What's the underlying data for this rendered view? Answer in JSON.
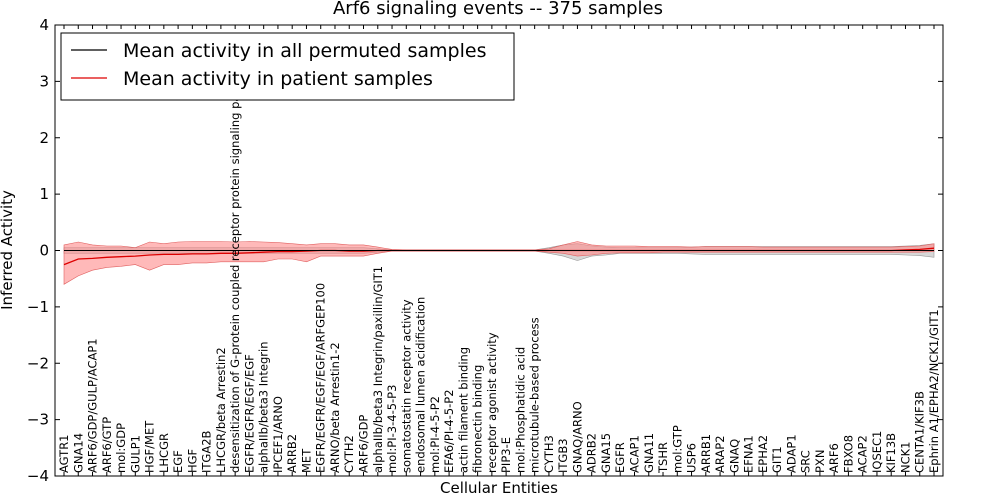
{
  "chart_data": {
    "type": "line",
    "title": "Arf6 signaling events -- 375 samples",
    "xlabel": "Cellular Entities",
    "ylabel": "Inferred Activity",
    "ylim": [
      -4,
      4
    ],
    "yticks": [
      -4,
      -3,
      -2,
      -1,
      0,
      1,
      2,
      3,
      4
    ],
    "ytick_labels": [
      "−4",
      "−3",
      "−2",
      "−1",
      "0",
      "1",
      "2",
      "3",
      "4"
    ],
    "legend_position": "top-left",
    "colors": {
      "permuted": "#000000",
      "patient": "#dd0000",
      "patient_band": "#ff8a8a",
      "permuted_band": "#b0b0b0"
    },
    "categories": [
      "AGTR1",
      "GNA14",
      "ARF6/GDP/GULP/ACAP1",
      "ARF6/GTP",
      "mol:GDP",
      "GULP1",
      "HGF/MET",
      "LHCGR",
      "EGF",
      "HGF",
      "ITGA2B",
      "LHCGR/beta Arrestin2",
      "desensitization of G-protein coupled receptor protein signaling pathway",
      "EGFR/EGFR/EGF/EGF",
      "alphaIIb/beta3 Integrin",
      "IPCEF1/ARNO",
      "ARRB2",
      "MET",
      "EGFR/EGFR/EGF/EGF/ARFGEP100",
      "ARNO/beta Arrestin1-2",
      "CYTH2",
      "ARF6/GDP",
      "alphaIIb/beta3 Integrin/paxillin/GIT1",
      "mol:PI-3-4-5-P3",
      "somatostatin receptor activity",
      "endosomal lumen acidification",
      "mol:PI-4-5-P2",
      "EFA6/PI-4-5-P2",
      "actin filament binding",
      "fibronectin binding",
      "receptor agonist activity",
      "PIP3-E",
      "mol:Phosphatidic acid",
      "microtubule-based process",
      "CYTH3",
      "ITGB3",
      "GNAQ/ARNO",
      "ADRB2",
      "GNA15",
      "EGFR",
      "ACAP1",
      "GNA11",
      "TSHR",
      "mol:GTP",
      "USP6",
      "ARRB1",
      "ARAP2",
      "GNAQ",
      "EFNA1",
      "EPHA2",
      "GIT1",
      "ADAP1",
      "SRC",
      "PXN",
      "ARF6",
      "FBXO8",
      "ACAP2",
      "IQSEC1",
      "KIF13B",
      "NCK1",
      "CENTA1/KIF3B",
      "Ephrin A1/EPHA2/NCK1/GIT1"
    ],
    "series": [
      {
        "name": "Mean activity in all permuted samples",
        "values": [
          0.0,
          0.0,
          0.0,
          0.0,
          0.0,
          0.0,
          0.0,
          0.0,
          0.0,
          0.0,
          0.0,
          0.0,
          0.0,
          0.0,
          0.0,
          0.0,
          0.0,
          0.0,
          0.0,
          0.0,
          0.0,
          0.0,
          0.0,
          0.0,
          0.0,
          0.0,
          0.0,
          0.0,
          0.0,
          0.0,
          0.0,
          0.0,
          0.0,
          0.0,
          0.0,
          0.0,
          0.0,
          0.0,
          0.0,
          0.0,
          0.0,
          0.0,
          0.0,
          0.0,
          0.0,
          0.0,
          0.0,
          0.0,
          0.0,
          0.0,
          0.0,
          0.0,
          0.0,
          0.0,
          0.0,
          0.0,
          0.0,
          0.0,
          0.0,
          0.0,
          0.0,
          0.0
        ],
        "lower": [
          -0.05,
          -0.05,
          -0.05,
          -0.05,
          -0.05,
          -0.05,
          -0.05,
          -0.05,
          -0.05,
          -0.05,
          -0.05,
          -0.05,
          -0.05,
          -0.05,
          -0.05,
          -0.05,
          -0.05,
          -0.05,
          -0.05,
          -0.05,
          -0.05,
          -0.05,
          -0.03,
          -0.01,
          -0.01,
          -0.01,
          -0.01,
          -0.01,
          -0.01,
          -0.01,
          -0.01,
          -0.01,
          -0.01,
          -0.01,
          -0.05,
          -0.1,
          -0.18,
          -0.1,
          -0.08,
          -0.05,
          -0.05,
          -0.05,
          -0.05,
          -0.05,
          -0.06,
          -0.07,
          -0.07,
          -0.07,
          -0.07,
          -0.07,
          -0.07,
          -0.07,
          -0.07,
          -0.07,
          -0.07,
          -0.07,
          -0.07,
          -0.07,
          -0.07,
          -0.08,
          -0.09,
          -0.12
        ],
        "upper": [
          0.05,
          0.05,
          0.05,
          0.05,
          0.05,
          0.05,
          0.05,
          0.05,
          0.05,
          0.05,
          0.05,
          0.05,
          0.05,
          0.05,
          0.05,
          0.05,
          0.05,
          0.05,
          0.05,
          0.05,
          0.05,
          0.05,
          0.03,
          0.01,
          0.01,
          0.01,
          0.01,
          0.01,
          0.01,
          0.01,
          0.01,
          0.01,
          0.01,
          0.01,
          0.05,
          0.1,
          0.12,
          0.08,
          0.06,
          0.05,
          0.05,
          0.05,
          0.05,
          0.05,
          0.06,
          0.07,
          0.07,
          0.07,
          0.07,
          0.07,
          0.07,
          0.07,
          0.07,
          0.07,
          0.07,
          0.07,
          0.07,
          0.07,
          0.07,
          0.08,
          0.09,
          0.12
        ]
      },
      {
        "name": "Mean activity in patient samples",
        "values": [
          -0.25,
          -0.15,
          -0.14,
          -0.12,
          -0.11,
          -0.1,
          -0.08,
          -0.07,
          -0.07,
          -0.06,
          -0.06,
          -0.05,
          -0.05,
          -0.04,
          -0.03,
          -0.02,
          -0.02,
          -0.01,
          0.0,
          0.0,
          -0.01,
          -0.01,
          0.0,
          0.0,
          0.0,
          0.0,
          0.0,
          0.0,
          0.0,
          0.0,
          0.0,
          0.0,
          0.0,
          0.0,
          0.0,
          0.0,
          0.0,
          0.0,
          0.0,
          0.0,
          0.0,
          0.0,
          0.0,
          0.0,
          0.0,
          0.0,
          0.0,
          0.0,
          0.0,
          0.0,
          0.0,
          0.0,
          0.0,
          0.0,
          0.0,
          0.0,
          0.0,
          0.0,
          0.0,
          0.01,
          0.02,
          0.04
        ],
        "lower": [
          -0.6,
          -0.45,
          -0.35,
          -0.3,
          -0.28,
          -0.25,
          -0.35,
          -0.25,
          -0.25,
          -0.22,
          -0.22,
          -0.2,
          -0.2,
          -0.2,
          -0.2,
          -0.15,
          -0.15,
          -0.2,
          -0.1,
          -0.1,
          -0.1,
          -0.1,
          -0.05,
          -0.01,
          -0.01,
          -0.01,
          -0.01,
          -0.01,
          -0.01,
          -0.01,
          -0.01,
          -0.01,
          -0.01,
          -0.01,
          -0.03,
          -0.05,
          -0.1,
          -0.08,
          -0.05,
          -0.04,
          -0.04,
          -0.04,
          -0.03,
          -0.03,
          -0.03,
          -0.03,
          -0.03,
          -0.03,
          -0.03,
          -0.03,
          -0.03,
          -0.03,
          -0.03,
          -0.03,
          -0.03,
          -0.03,
          -0.03,
          -0.03,
          -0.03,
          -0.03,
          -0.03,
          -0.02
        ],
        "upper": [
          0.1,
          0.15,
          0.1,
          0.08,
          0.08,
          0.05,
          0.15,
          0.12,
          0.15,
          0.16,
          0.16,
          0.16,
          0.15,
          0.16,
          0.15,
          0.14,
          0.12,
          0.1,
          0.12,
          0.12,
          0.1,
          0.1,
          0.06,
          0.02,
          0.01,
          0.01,
          0.01,
          0.01,
          0.01,
          0.01,
          0.01,
          0.01,
          0.01,
          0.01,
          0.03,
          0.1,
          0.16,
          0.1,
          0.08,
          0.08,
          0.08,
          0.07,
          0.07,
          0.07,
          0.06,
          0.07,
          0.07,
          0.07,
          0.07,
          0.06,
          0.06,
          0.06,
          0.06,
          0.06,
          0.06,
          0.06,
          0.06,
          0.06,
          0.06,
          0.07,
          0.08,
          0.12
        ]
      }
    ]
  }
}
